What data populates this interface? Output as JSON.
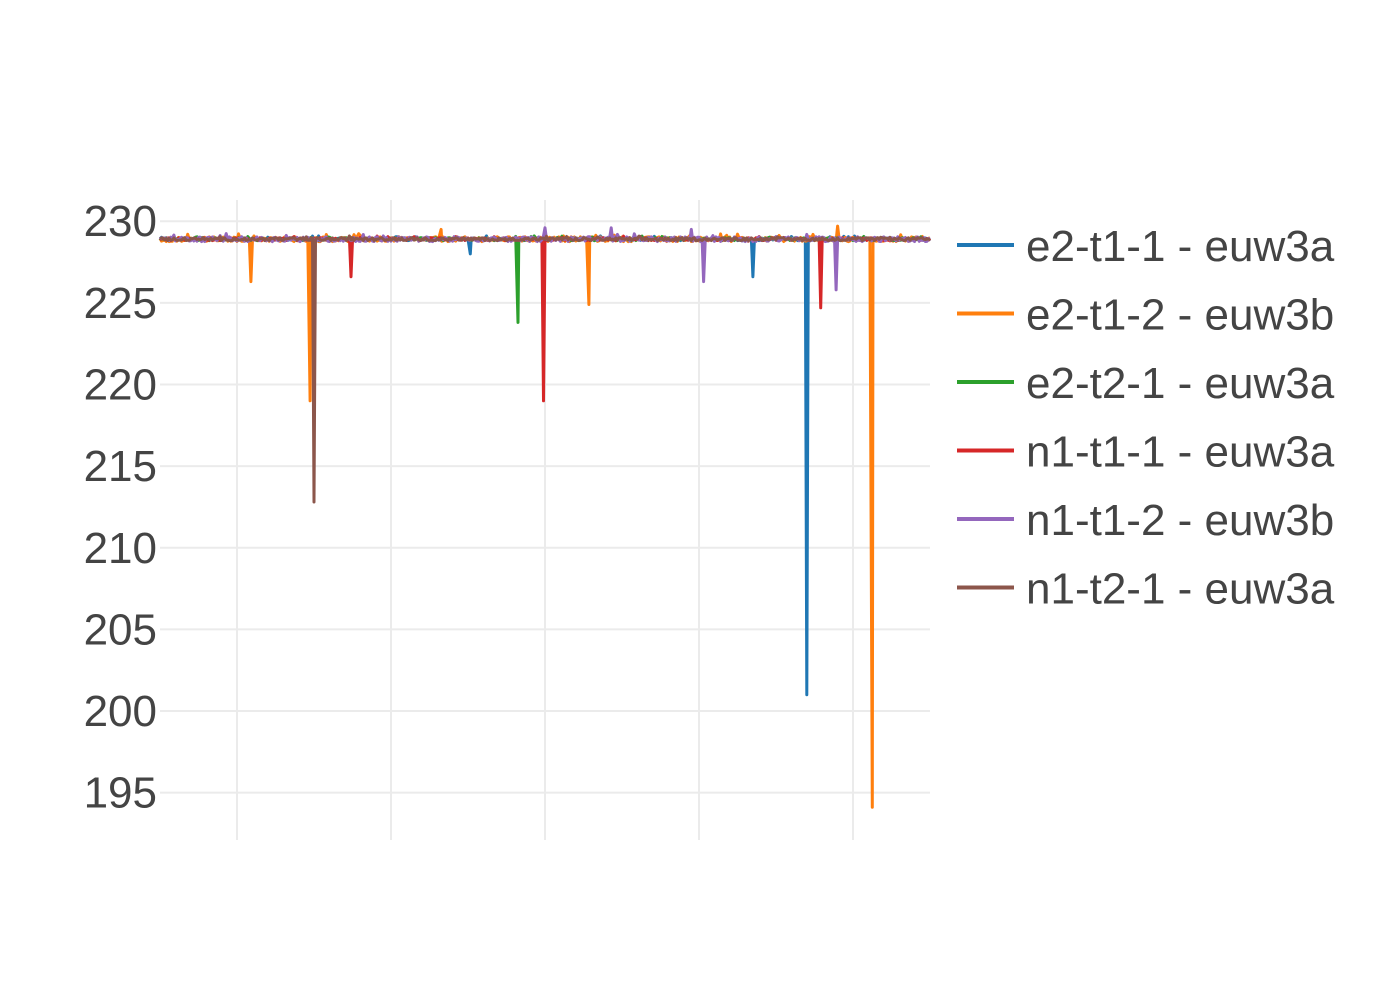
{
  "chart_data": {
    "type": "line",
    "title": "",
    "xlabel": "",
    "ylabel": "",
    "ylim": [
      192.1,
      231.3
    ],
    "xlim": [
      0,
      1000
    ],
    "y_ticks": [
      "230",
      "225",
      "220",
      "215",
      "210",
      "205",
      "200",
      "195"
    ],
    "x_grid": [
      100,
      300,
      500,
      700,
      900
    ],
    "grid": true,
    "legend_position": "right",
    "baseline": 228.9,
    "series": [
      {
        "name": "e2-t1-1 - euw3a",
        "color": "#1f77b4",
        "noise": 0.3,
        "spikes": [
          [
            403,
            228.0
          ],
          [
            770,
            226.6
          ],
          [
            840,
            201.0
          ]
        ]
      },
      {
        "name": "e2-t1-2 - euw3b",
        "color": "#ff7f0e",
        "noise": 0.5,
        "spikes": [
          [
            118,
            226.3
          ],
          [
            195,
            219.0
          ],
          [
            365,
            229.5
          ],
          [
            557,
            224.9
          ],
          [
            880,
            229.7
          ],
          [
            925,
            194.1
          ]
        ]
      },
      {
        "name": "e2-t2-1 - euw3a",
        "color": "#2ca02c",
        "noise": 0.3,
        "spikes": [
          [
            465,
            223.8
          ]
        ]
      },
      {
        "name": "n1-t1-1 - euw3a",
        "color": "#d62728",
        "noise": 0.3,
        "spikes": [
          [
            248,
            226.6
          ],
          [
            498,
            219.0
          ],
          [
            858,
            224.7
          ]
        ]
      },
      {
        "name": "n1-t1-2 - euw3b",
        "color": "#9467bd",
        "noise": 0.5,
        "spikes": [
          [
            500,
            229.6
          ],
          [
            586,
            229.6
          ],
          [
            690,
            229.5
          ],
          [
            706,
            226.3
          ],
          [
            878,
            225.8
          ]
        ]
      },
      {
        "name": "n1-t2-1 - euw3a",
        "color": "#8c564b",
        "noise": 0.3,
        "spikes": [
          [
            200,
            212.8
          ]
        ]
      }
    ]
  }
}
